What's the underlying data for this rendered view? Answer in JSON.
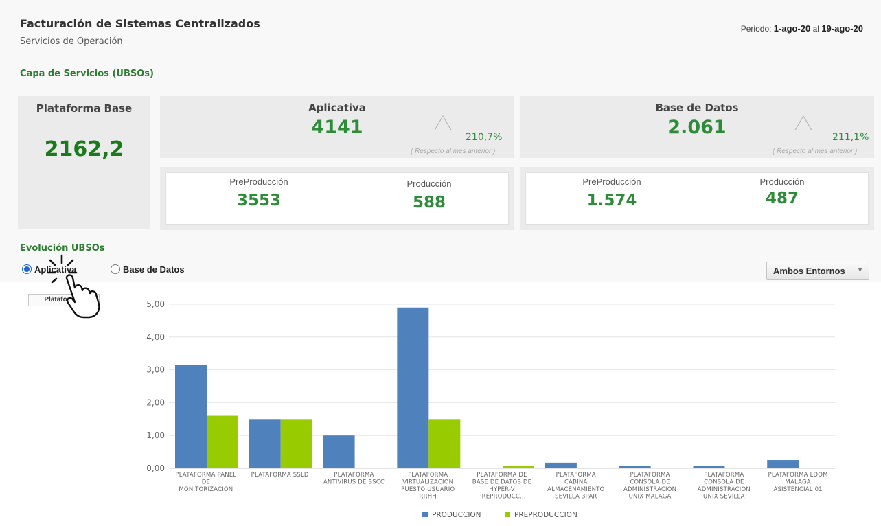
{
  "header": {
    "title": "Facturación de Sistemas Centralizados",
    "subtitle": "Servicios de Operación",
    "period_label": "Periodo:",
    "period_from": "1-ago-20",
    "period_sep": "al",
    "period_to": "19-ago-20"
  },
  "capa": {
    "section_title": "Capa de Servicios (UBSOs)",
    "plataforma_base": {
      "label": "Plataforma Base",
      "value": "2162,2"
    },
    "aplicativa": {
      "label": "Aplicativa",
      "value": "4141",
      "change": "210,7%",
      "note": "( Respecto al mes anterior )",
      "pre_label": "PreProducción",
      "pre_value": "3553",
      "prod_label": "Producción",
      "prod_value": "588"
    },
    "base_datos": {
      "label": "Base de Datos",
      "value": "2.061",
      "change": "211,1%",
      "note": "( Respecto al mes anterior )",
      "pre_label": "PreProducción",
      "pre_value": "1.574",
      "prod_label": "Producción",
      "prod_value": "487"
    }
  },
  "evolucion": {
    "section_title": "Evolución UBSOs",
    "radio_aplicativa": "Aplicativa",
    "radio_base_datos": "Base de Datos",
    "selected_radio": "Aplicativa",
    "entorno_select": "Ambos Entornos",
    "plataformas_button": "Plataformas"
  },
  "chart_data": {
    "type": "bar",
    "categories": [
      [
        "PLATAFORMA PANEL",
        "DE",
        "MONITORIZACION"
      ],
      [
        "PLATAFORMA SSLD"
      ],
      [
        "PLATAFORMA",
        "ANTIVIRUS DE SSCC"
      ],
      [
        "PLATAFORMA",
        "VIRTUALIZACION",
        "PUESTO USUARIO",
        "RRHH"
      ],
      [
        "PLATAFORMA DE",
        "BASE DE DATOS DE",
        "HYPER-V",
        "PREPRODUCC..."
      ],
      [
        "PLATAFORMA",
        "CABINA",
        "ALMACENAMIENTO",
        "SEVILLA 3PAR"
      ],
      [
        "PLATAFORMA",
        "CONSOLA DE",
        "ADMINISTRACION",
        "UNIX MALAGA"
      ],
      [
        "PLATAFORMA",
        "CONSOLA DE",
        "ADMINISTRACION",
        "UNIX SEVILLA"
      ],
      [
        "PLATAFORMA LDOM",
        "MALAGA",
        "ASISTENCIAL 01"
      ]
    ],
    "series": [
      {
        "name": "PRODUCCION",
        "color": "#4f81bd",
        "values": [
          3.15,
          1.5,
          1.0,
          4.9,
          0,
          0.17,
          0.08,
          0.08,
          0.25
        ]
      },
      {
        "name": "PREPRODUCCION",
        "color": "#99cc00",
        "values": [
          1.6,
          1.5,
          0,
          1.5,
          0.08,
          0,
          0,
          0,
          0
        ]
      }
    ],
    "ylim": [
      0,
      5
    ],
    "yticks": [
      "0,00",
      "1,00",
      "2,00",
      "3,00",
      "4,00",
      "5,00"
    ],
    "grid": true,
    "legend": "bottom"
  }
}
